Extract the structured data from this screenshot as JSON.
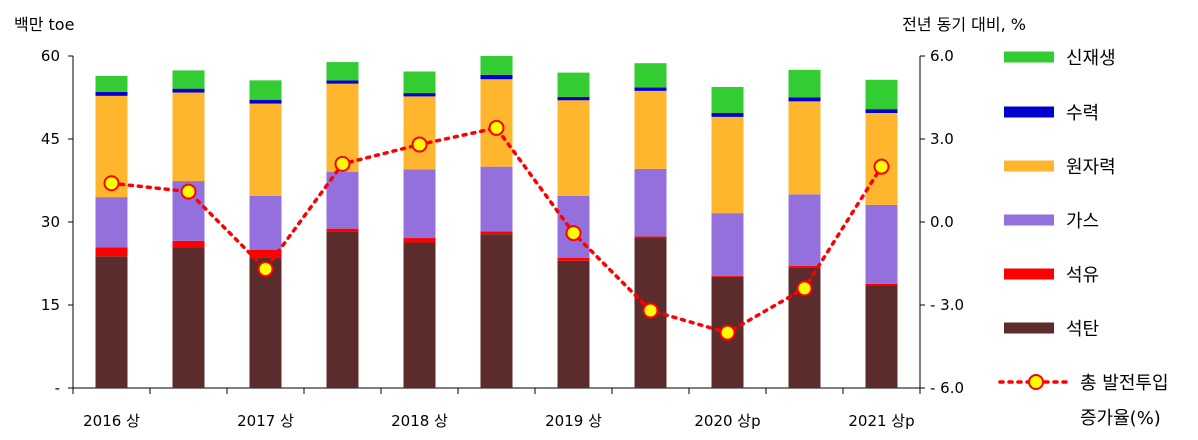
{
  "chart_data": {
    "type": "bar",
    "stacked": true,
    "categories": [
      "2016 상",
      "",
      "2017 상",
      "",
      "2018 상",
      "",
      "2019 상",
      "",
      "2020 상p",
      "",
      "2021 상p"
    ],
    "left_axis": {
      "title": "백만 toe",
      "ylim": [
        0,
        60
      ],
      "ticks": [
        "-",
        "15",
        "30",
        "45",
        "60"
      ],
      "tick_values": [
        0,
        15,
        30,
        45,
        60
      ]
    },
    "right_axis": {
      "title": "전년 동기 대비, %",
      "ylim": [
        -6.0,
        6.0
      ],
      "ticks": [
        "- 6.0",
        "- 3.0",
        "0.0",
        "3.0",
        "6.0"
      ],
      "tick_values": [
        -6,
        -3,
        0,
        3,
        6
      ]
    },
    "series": [
      {
        "name": "석탄",
        "color": "#5c2c2c",
        "values": [
          23.8,
          25.3,
          23.5,
          28.3,
          26.3,
          27.8,
          23.0,
          27.1,
          20.1,
          21.8,
          18.6
        ]
      },
      {
        "name": "석유",
        "color": "#ff0000",
        "values": [
          1.6,
          1.3,
          1.5,
          0.5,
          0.8,
          0.5,
          0.5,
          0.3,
          0.2,
          0.3,
          0.2
        ]
      },
      {
        "name": "가스",
        "color": "#9370db",
        "values": [
          9.1,
          10.8,
          9.7,
          10.3,
          12.4,
          11.7,
          11.2,
          12.2,
          11.3,
          12.9,
          14.3
        ]
      },
      {
        "name": "원자력",
        "color": "#ffb62f",
        "values": [
          18.3,
          16.0,
          16.7,
          15.9,
          13.2,
          15.8,
          17.3,
          14.1,
          17.4,
          16.8,
          16.6
        ]
      },
      {
        "name": "수력",
        "color": "#0000cc",
        "values": [
          0.7,
          0.7,
          0.7,
          0.6,
          0.6,
          0.8,
          0.6,
          0.6,
          0.7,
          0.7,
          0.7
        ]
      },
      {
        "name": "신재생",
        "color": "#33cc33",
        "values": [
          2.9,
          3.3,
          3.5,
          3.3,
          3.9,
          3.4,
          4.4,
          4.4,
          4.7,
          5.0,
          5.3
        ]
      }
    ],
    "line_series": {
      "name": "총 발전투입 증가율(%)",
      "color": "#ff0000",
      "marker_color": "#ffff00",
      "values": [
        1.4,
        1.1,
        -1.7,
        2.1,
        2.8,
        3.4,
        -0.4,
        -3.2,
        -4.0,
        -2.4,
        2.0
      ]
    },
    "legend": {
      "placement": "right",
      "entries": [
        "신재생",
        "수력",
        "원자력",
        "가스",
        "석유",
        "석탄"
      ],
      "line_label_1": "총 발전투입",
      "line_label_2": "증가율(%)"
    }
  }
}
